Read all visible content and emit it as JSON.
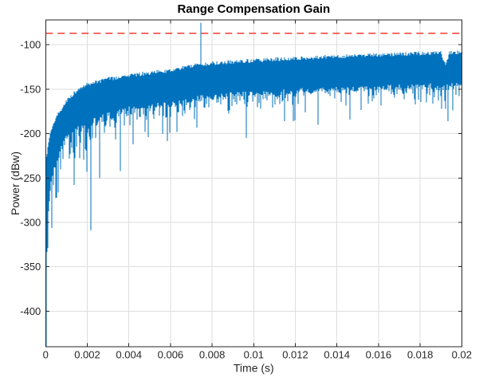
{
  "figure": {
    "background": "#FFFFFF"
  },
  "chart_data": {
    "type": "line",
    "title": "Range Compensation Gain",
    "xlabel": "Time (s)",
    "ylabel": "Power (dBw)",
    "xlim": [
      0,
      0.02
    ],
    "ylim": [
      -440,
      -72
    ],
    "grid": true,
    "box": true,
    "tick_direction": "in",
    "legend": "none",
    "xticks": {
      "values": [
        0,
        0.002,
        0.004,
        0.006,
        0.008,
        0.01,
        0.012,
        0.014,
        0.016,
        0.018,
        0.02
      ],
      "labels": [
        "0",
        "0.002",
        "0.004",
        "0.006",
        "0.008",
        "0.01",
        "0.012",
        "0.014",
        "0.016",
        "0.018",
        "0.02"
      ]
    },
    "yticks": {
      "values": [
        -400,
        -350,
        -300,
        -250,
        -200,
        -150,
        -100
      ],
      "labels": [
        "-400",
        "-350",
        "-300",
        "-250",
        "-200",
        "-150",
        "-100"
      ]
    },
    "colors": {
      "series": "#0072BD",
      "threshold": "#F03C32",
      "grid": "#DEDEDE",
      "axis": "#262626",
      "text": "#262626",
      "title": "#000000",
      "background": "#FFFFFF"
    },
    "threshold_line": {
      "value": -87,
      "style": "dashed",
      "color": "#F03C32"
    },
    "series": [
      {
        "name": "range-compensated-power",
        "type": "noisy-line",
        "color": "#0072BD",
        "noise_seed": 11,
        "envelope": {
          "t": [
            0,
            5e-05,
            0.0001,
            0.0002,
            0.0003,
            0.0005,
            0.0007,
            0.001,
            0.0014,
            0.002,
            0.003,
            0.004,
            0.005,
            0.006,
            0.0075,
            0.009,
            0.01,
            0.012,
            0.014,
            0.016,
            0.018,
            0.02
          ],
          "upper": [
            -228,
            -222,
            -214,
            -201,
            -193,
            -182,
            -173,
            -163,
            -153,
            -144,
            -138,
            -134,
            -131,
            -128,
            -121,
            -118.5,
            -117,
            -114.5,
            -112.5,
            -110.5,
            -109,
            -107.5
          ],
          "lower": [
            -440,
            -330,
            -295,
            -262,
            -243,
            -226,
            -214,
            -201,
            -192,
            -186,
            -175,
            -169.5,
            -166,
            -163,
            -156,
            -153,
            -151.5,
            -149,
            -147,
            -145,
            -143.5,
            -142
          ]
        },
        "features": {
          "initial_dip": {
            "t": 0,
            "value": -440
          },
          "peak_spike": {
            "t": 0.00746,
            "value": -75
          },
          "notch": {
            "t": 0.0192,
            "width": 0.0004,
            "upper_drop": 14
          },
          "deep_spikes": [
            {
              "t": 0.00053,
              "value": -272
            },
            {
              "t": 0.00135,
              "value": -258
            },
            {
              "t": 0.00215,
              "value": -309
            },
            {
              "t": 0.0026,
              "value": -250
            },
            {
              "t": 0.0036,
              "value": -242
            },
            {
              "t": 0.0042,
              "value": -212
            },
            {
              "t": 0.0063,
              "value": -198
            },
            {
              "t": 0.00965,
              "value": -205
            },
            {
              "t": 0.0119,
              "value": -186
            },
            {
              "t": 0.0131,
              "value": -190
            },
            {
              "t": 0.0146,
              "value": -184
            },
            {
              "t": 0.01922,
              "value": -172
            },
            {
              "t": 0.01932,
              "value": -186
            }
          ]
        }
      }
    ]
  }
}
